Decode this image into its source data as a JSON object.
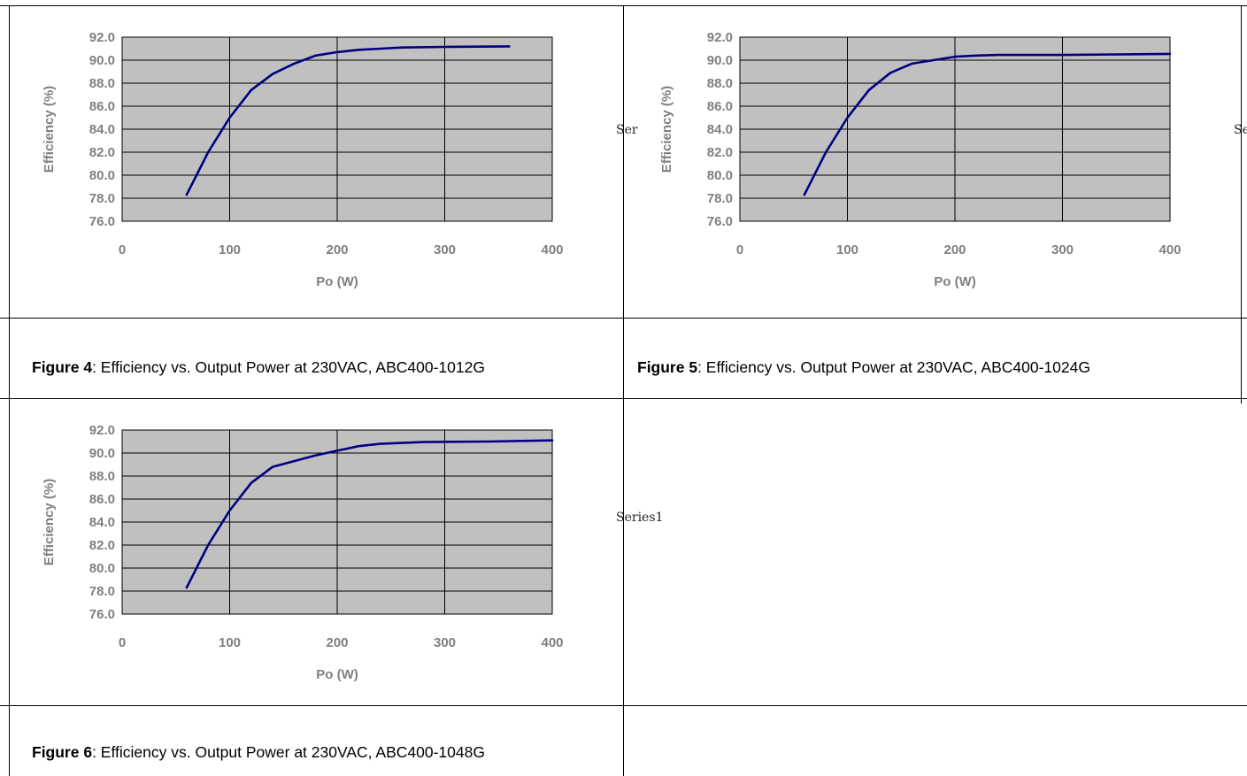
{
  "charts": [
    {
      "id": "fig4",
      "chart_data": {
        "type": "line",
        "xlabel": "Po (W)",
        "ylabel": "Efficiency (%)",
        "xlim": [
          0,
          400
        ],
        "ylim": [
          76.0,
          92.0
        ],
        "xticks": [
          "0",
          "100",
          "200",
          "300",
          "400"
        ],
        "yticks": [
          "92.0",
          "90.0",
          "88.0",
          "86.0",
          "84.0",
          "82.0",
          "80.0",
          "78.0",
          "76.0"
        ],
        "grid": true,
        "legend": "none",
        "series": [
          {
            "color": "#000080",
            "x": [
              60,
              80,
              100,
              120,
              140,
              160,
              180,
              200,
              220,
              240,
              260,
              300,
              360
            ],
            "y": [
              78.3,
              82.0,
              85.0,
              87.4,
              88.8,
              89.7,
              90.4,
              90.7,
              90.9,
              91.0,
              91.1,
              91.15,
              91.2
            ]
          }
        ]
      },
      "series_label": "",
      "caption": {
        "figure": "Figure 4",
        "text": ": Efficiency vs. Output Power at 230VAC, ABC400-1012G"
      }
    },
    {
      "id": "fig5",
      "chart_data": {
        "type": "line",
        "xlabel": "Po (W)",
        "ylabel": "Efficiency (%)",
        "xlim": [
          0,
          400
        ],
        "ylim": [
          76.0,
          92.0
        ],
        "xticks": [
          "0",
          "100",
          "200",
          "300",
          "400"
        ],
        "yticks": [
          "92.0",
          "90.0",
          "88.0",
          "86.0",
          "84.0",
          "82.0",
          "80.0",
          "78.0",
          "76.0"
        ],
        "grid": true,
        "legend": "none",
        "series": [
          {
            "color": "#000080",
            "x": [
              60,
              80,
              100,
              120,
              140,
              160,
              180,
              200,
              220,
              240,
              300,
              350,
              400
            ],
            "y": [
              78.3,
              82.0,
              85.0,
              87.4,
              88.9,
              89.7,
              90.0,
              90.3,
              90.4,
              90.45,
              90.45,
              90.5,
              90.55
            ]
          }
        ]
      },
      "series_label": "Ser",
      "series_label_2": "Se",
      "caption": {
        "figure": "Figure 5",
        "text": ": Efficiency vs. Output Power at 230VAC, ABC400-1024G"
      }
    },
    {
      "id": "fig6",
      "chart_data": {
        "type": "line",
        "xlabel": "Po (W)",
        "ylabel": "Efficiency (%)",
        "xlim": [
          0,
          400
        ],
        "ylim": [
          76.0,
          92.0
        ],
        "xticks": [
          "0",
          "100",
          "200",
          "300",
          "400"
        ],
        "yticks": [
          "92.0",
          "90.0",
          "88.0",
          "86.0",
          "84.0",
          "82.0",
          "80.0",
          "78.0",
          "76.0"
        ],
        "grid": true,
        "legend": "none",
        "series": [
          {
            "color": "#000080",
            "x": [
              60,
              80,
              100,
              120,
              140,
              160,
              180,
              200,
              220,
              240,
              280,
              340,
              400
            ],
            "y": [
              78.3,
              82.0,
              85.0,
              87.4,
              88.8,
              89.3,
              89.8,
              90.2,
              90.6,
              90.8,
              90.95,
              91.0,
              91.1
            ]
          }
        ]
      },
      "series_label": "Series1",
      "caption": {
        "figure": "Figure 6",
        "text": ": Efficiency vs. Output Power at 230VAC, ABC400-1048G"
      }
    }
  ],
  "colors": {
    "plot_bg": "#c0c0c0",
    "line": "#000080",
    "text": "#7f7f7f"
  }
}
